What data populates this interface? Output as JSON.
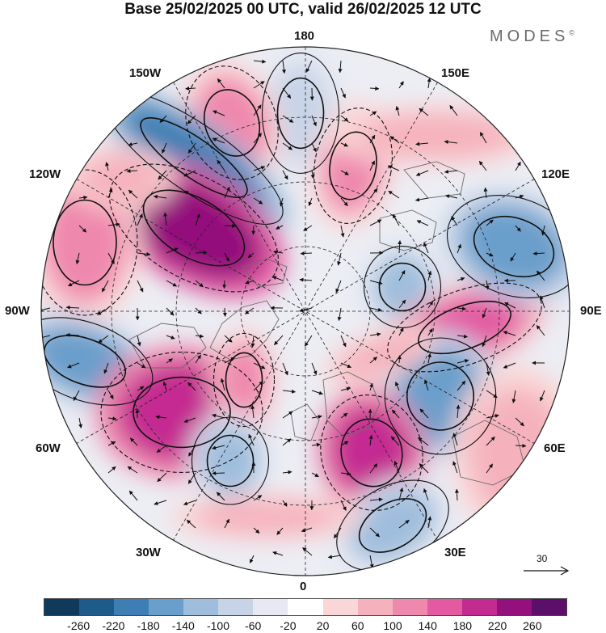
{
  "header": {
    "title": "Base 25/02/2025 00 UTC, valid 26/02/2025 12 UTC",
    "brand": "MODES",
    "brand_mark": "©"
  },
  "map": {
    "projection": "north-polar-stereographic",
    "longitude_labels": {
      "top": "180",
      "bottom": "0",
      "left": "90W",
      "right": "90E",
      "upper_left_1": "150W",
      "upper_left_2": "120W",
      "upper_right_1": "150E",
      "upper_right_2": "120E",
      "lower_left_1": "60W",
      "lower_left_2": "30W",
      "lower_right_1": "60E",
      "lower_right_2": "30E"
    },
    "reference_vector_label": "30"
  },
  "colorbar": {
    "ticks": [
      "-260",
      "-220",
      "-180",
      "-140",
      "-100",
      "-60",
      "-20",
      "20",
      "60",
      "100",
      "140",
      "180",
      "220",
      "260"
    ],
    "colors": [
      "#0f3a5c",
      "#1d5c8a",
      "#3d7fb5",
      "#6b9fcb",
      "#9fbedd",
      "#c7d4e8",
      "#e6e8f2",
      "#ffffff",
      "#fad6d6",
      "#f5b2bd",
      "#ef88ad",
      "#e35aa2",
      "#c42b91",
      "#94107c",
      "#5b0f6b"
    ]
  }
}
